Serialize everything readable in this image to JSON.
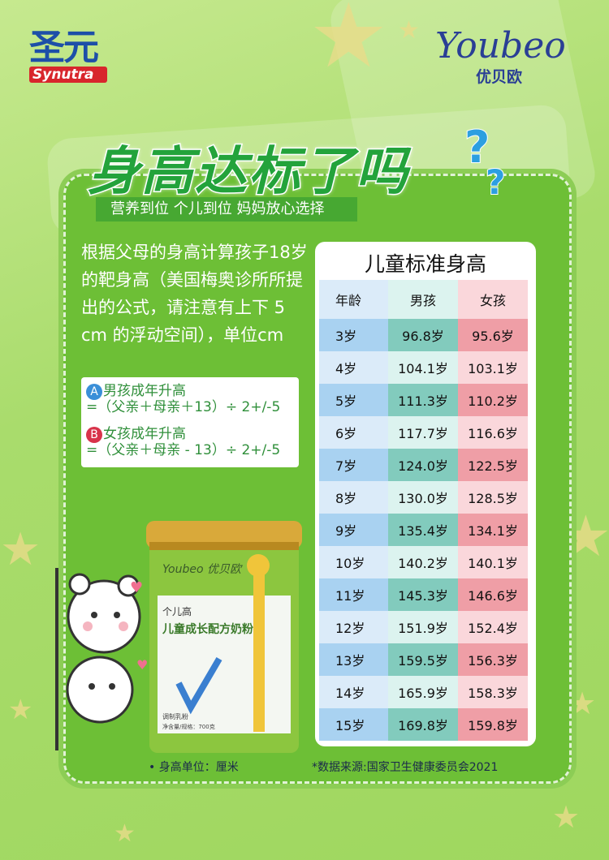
{
  "brand_left": {
    "cn": "圣元",
    "en": "Synutra"
  },
  "brand_right": {
    "en": "Youbeo",
    "cn": "优贝欧"
  },
  "title": "身高达标了吗",
  "subtitle": "营养到位 个儿到位   妈妈放心选择",
  "intro": "根据父母的身高计算孩子18岁的靶身高（美国梅奥诊所所提出的公式，请注意有上下 5 cm 的浮动空间），单位cm",
  "formulas": [
    {
      "badge": "A",
      "label": "男孩成年升高",
      "expr": "=（父亲＋母亲＋13）÷ 2+/-5",
      "color": "#3a8fd8"
    },
    {
      "badge": "B",
      "label": "女孩成年升高",
      "expr": "=（父亲＋母亲 - 13）÷ 2+/-5",
      "color": "#d8334a"
    }
  ],
  "table": {
    "title": "儿童标准身高",
    "headers": [
      "年龄",
      "男孩",
      "女孩"
    ],
    "rows": [
      [
        "3岁",
        "96.8岁",
        "95.6岁"
      ],
      [
        "4岁",
        "104.1岁",
        "103.1岁"
      ],
      [
        "5岁",
        "111.3岁",
        "110.2岁"
      ],
      [
        "6岁",
        "117.7岁",
        "116.6岁"
      ],
      [
        "7岁",
        "124.0岁",
        "122.5岁"
      ],
      [
        "8岁",
        "130.0岁",
        "128.5岁"
      ],
      [
        "9岁",
        "135.4岁",
        "134.1岁"
      ],
      [
        "10岁",
        "140.2岁",
        "140.1岁"
      ],
      [
        "11岁",
        "145.3岁",
        "146.6岁"
      ],
      [
        "12岁",
        "151.9岁",
        "152.4岁"
      ],
      [
        "13岁",
        "159.5岁",
        "156.3岁"
      ],
      [
        "14岁",
        "165.9岁",
        "158.3岁"
      ],
      [
        "15岁",
        "169.8岁",
        "159.8岁"
      ]
    ]
  },
  "footer": {
    "unit": "• 身高单位：厘米",
    "source": "*数据来源:国家卫生健康委员会2021"
  },
  "product": {
    "brand": "Youbeo 优贝欧",
    "name_small": "个儿高",
    "name": "儿童成长配方奶粉",
    "type": "调制乳粉",
    "net": "净含量/规格：700克"
  },
  "colors": {
    "panel": "#6dbf36",
    "title": "#23a33b",
    "boy": "#82cbbd",
    "girl": "#ef9ea6",
    "age": "#a9d2f1"
  }
}
